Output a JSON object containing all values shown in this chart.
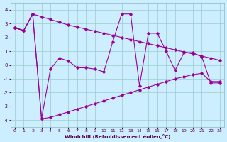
{
  "xlabel": "Windchill (Refroidissement éolien,°C)",
  "background_color": "#cceeff",
  "grid_color": "#99cccc",
  "line_color": "#990099",
  "xlim": [
    -0.5,
    23.5
  ],
  "ylim": [
    -4.5,
    4.5
  ],
  "yticks": [
    -4,
    -3,
    -2,
    -1,
    0,
    1,
    2,
    3,
    4
  ],
  "line1_x": [
    0,
    1,
    2,
    3,
    4,
    5,
    6,
    7,
    8,
    9,
    10,
    11,
    12,
    13,
    14,
    15,
    16,
    17,
    18,
    19,
    20,
    21,
    22,
    23
  ],
  "line1_y": [
    2.7,
    2.5,
    3.7,
    3.5,
    3.3,
    3.1,
    2.9,
    2.75,
    2.6,
    2.45,
    2.3,
    2.15,
    2.0,
    1.85,
    1.7,
    1.55,
    1.4,
    1.25,
    1.1,
    0.95,
    0.8,
    0.65,
    0.5,
    0.35
  ],
  "line2_x": [
    0,
    1,
    2,
    3,
    4,
    5,
    6,
    7,
    8,
    9,
    10,
    11,
    12,
    13,
    14,
    15,
    16,
    17,
    18,
    19,
    20,
    21,
    22,
    23
  ],
  "line2_y": [
    2.7,
    2.5,
    3.7,
    -3.9,
    -0.3,
    0.5,
    0.3,
    -0.2,
    -0.2,
    -0.3,
    -0.5,
    1.7,
    3.7,
    3.7,
    -1.5,
    2.3,
    2.3,
    1.0,
    -0.4,
    0.9,
    0.9,
    0.6,
    -1.3,
    -1.3
  ],
  "line3_x": [
    0,
    1,
    2,
    3,
    4,
    5,
    6,
    7,
    8,
    9,
    10,
    11,
    12,
    13,
    14,
    15,
    16,
    17,
    18,
    19,
    20,
    21,
    22,
    23
  ],
  "line3_y": [
    2.7,
    2.5,
    3.7,
    -3.9,
    -3.8,
    -3.6,
    -3.4,
    -3.2,
    -3.0,
    -2.8,
    -2.6,
    -2.4,
    -2.2,
    -2.0,
    -1.8,
    -1.6,
    -1.4,
    -1.2,
    -1.0,
    -0.85,
    -0.7,
    -0.6,
    -1.2,
    -1.2
  ]
}
